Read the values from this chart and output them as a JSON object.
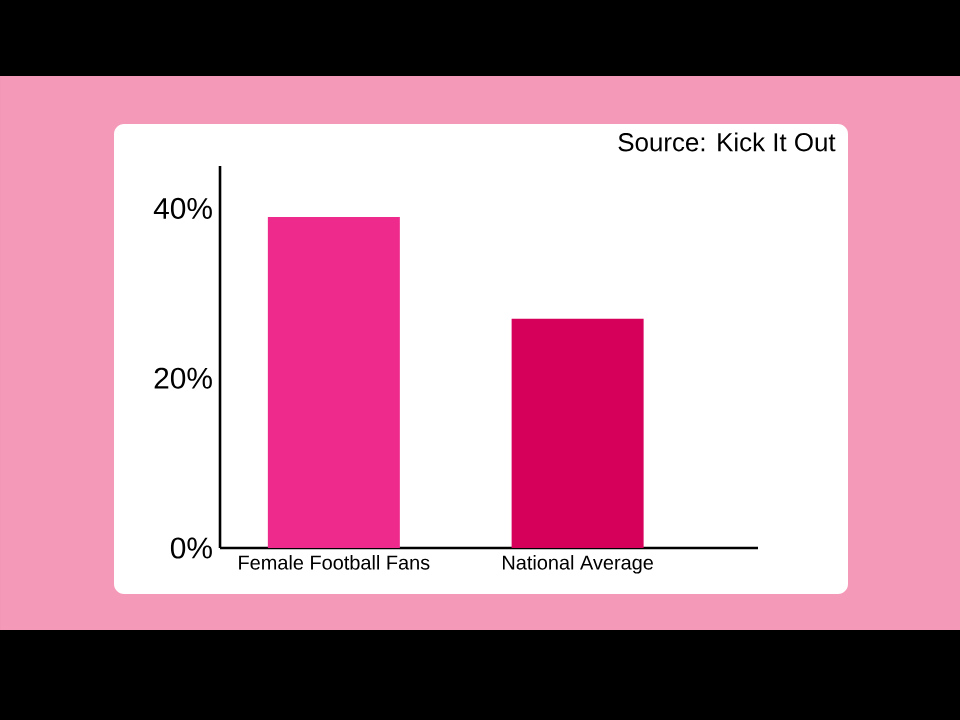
{
  "chart_data": {
    "type": "bar",
    "categories": [
      "Female Football Fans",
      "National Average"
    ],
    "values": [
      39,
      27
    ],
    "colors": [
      "#ee2a8c",
      "#d6005b"
    ],
    "ylim": [
      0,
      45
    ],
    "yticks": [
      {
        "value": 0,
        "label": "0%"
      },
      {
        "value": 20,
        "label": "20%"
      },
      {
        "value": 40,
        "label": "40%"
      }
    ],
    "annotations": [
      "Source: Kick It Out"
    ],
    "grid": false
  }
}
